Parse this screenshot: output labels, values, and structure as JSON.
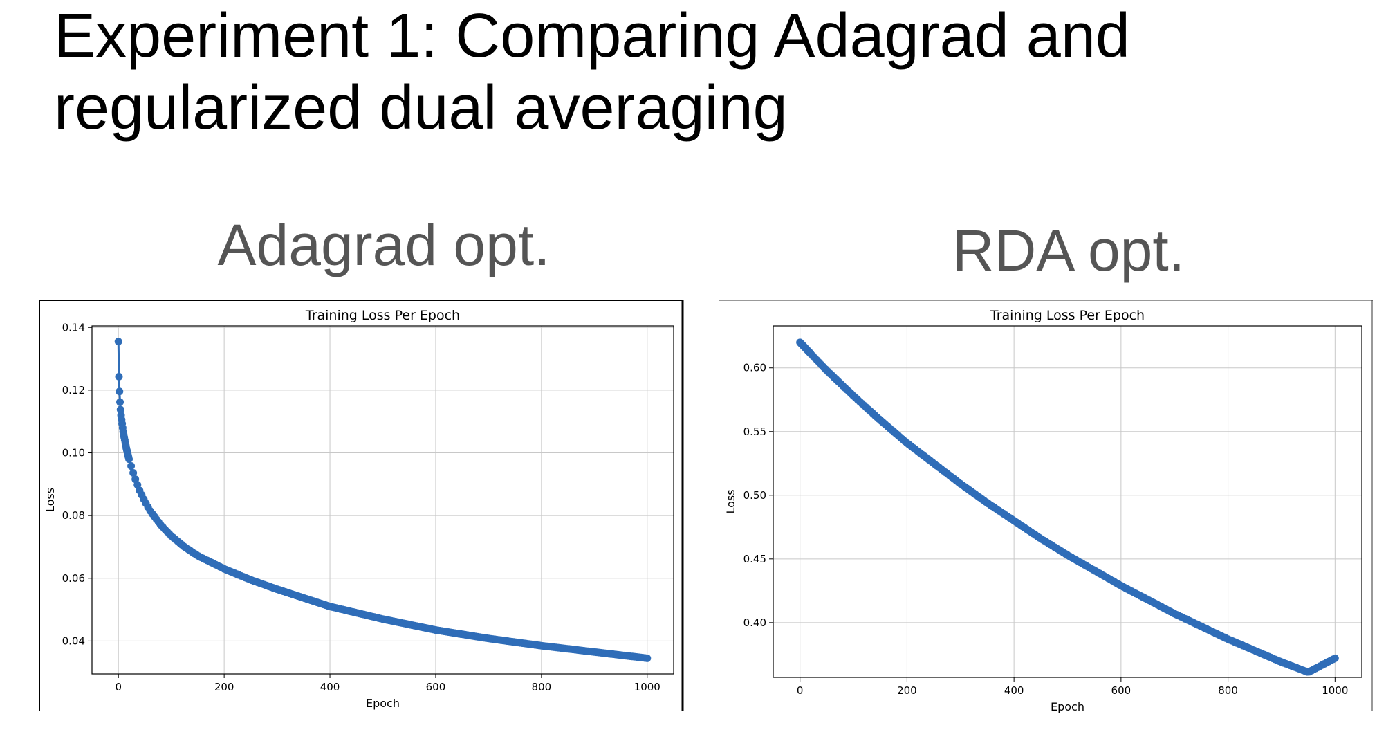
{
  "slide": {
    "title_line1": "Experiment 1: Comparing Adagrad and",
    "title_line2": "regularized dual averaging",
    "left_heading": "Adagrad opt.",
    "right_heading": "RDA opt."
  },
  "colors": {
    "series": "#2f6db8",
    "grid": "#c8c8c8",
    "axis": "#000000",
    "heading": "#555555"
  },
  "chart_data": [
    {
      "type": "line",
      "marker": "circle",
      "title": "Training Loss Per Epoch",
      "xlabel": "Epoch",
      "ylabel": "Loss",
      "xlim": [
        -50,
        1050
      ],
      "ylim": [
        0.0295,
        0.1405
      ],
      "xticks": [
        0,
        200,
        400,
        600,
        800,
        1000
      ],
      "yticks": [
        0.04,
        0.06,
        0.08,
        0.1,
        0.12,
        0.14
      ],
      "xtick_labels": [
        "0",
        "200",
        "400",
        "600",
        "800",
        "1000"
      ],
      "ytick_labels": [
        "0.04",
        "0.06",
        "0.08",
        "0.10",
        "0.12",
        "0.14"
      ],
      "grid": true,
      "series": [
        {
          "x": [
            0,
            1,
            2,
            3,
            4,
            5,
            6,
            7,
            8,
            9,
            10,
            15,
            20,
            30,
            40,
            50,
            60,
            80,
            100,
            125,
            150,
            200,
            250,
            300,
            400,
            500,
            600,
            700,
            800,
            900,
            1000
          ],
          "y": [
            0.1355,
            0.1243,
            0.1196,
            0.1162,
            0.1138,
            0.112,
            0.1106,
            0.1093,
            0.108,
            0.1068,
            0.1058,
            0.1015,
            0.098,
            0.0925,
            0.088,
            0.0845,
            0.0815,
            0.077,
            0.0735,
            0.07,
            0.0672,
            0.063,
            0.0595,
            0.0565,
            0.051,
            0.047,
            0.0435,
            0.0408,
            0.0385,
            0.0365,
            0.0345
          ]
        }
      ]
    },
    {
      "type": "line",
      "marker": "circle",
      "title": "Training Loss Per Epoch",
      "xlabel": "Epoch",
      "ylabel": "Loss",
      "xlim": [
        -50,
        1050
      ],
      "ylim": [
        0.357,
        0.633
      ],
      "xticks": [
        0,
        200,
        400,
        600,
        800,
        1000
      ],
      "yticks": [
        0.4,
        0.45,
        0.5,
        0.55,
        0.6
      ],
      "xtick_labels": [
        "0",
        "200",
        "400",
        "600",
        "800",
        "1000"
      ],
      "ytick_labels": [
        "0.40",
        "0.45",
        "0.50",
        "0.55",
        "0.60"
      ],
      "grid": true,
      "series": [
        {
          "x": [
            0,
            50,
            100,
            150,
            200,
            250,
            300,
            350,
            400,
            450,
            500,
            550,
            600,
            650,
            700,
            750,
            800,
            850,
            900,
            950,
            1000
          ],
          "y": [
            0.62,
            0.598,
            0.578,
            0.559,
            0.541,
            0.525,
            0.509,
            0.494,
            0.48,
            0.466,
            0.453,
            0.441,
            0.429,
            0.418,
            0.407,
            0.397,
            0.387,
            0.378,
            0.369,
            0.361,
            0.372
          ]
        }
      ]
    }
  ]
}
